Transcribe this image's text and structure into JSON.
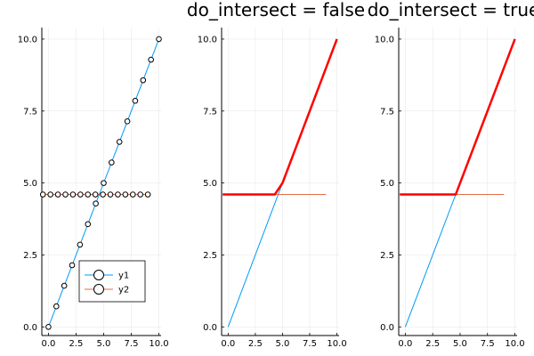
{
  "chart_data": [
    {
      "type": "line",
      "title": "",
      "xlabel": "",
      "ylabel": "",
      "xlim": [
        -0.6,
        10.2
      ],
      "ylim": [
        -0.3,
        10.4
      ],
      "xticks": [
        0,
        2.5,
        5,
        7.5,
        10
      ],
      "xtick_labels": [
        "0.0",
        "2.5",
        "5.0",
        "7.5",
        "10.0"
      ],
      "yticks": [
        0,
        2.5,
        5,
        7.5,
        10
      ],
      "ytick_labels": [
        "0.0",
        "2.5",
        "5.0",
        "7.5",
        "10.0"
      ],
      "grid": true,
      "legend": {
        "placement": "bottom-center",
        "entries": [
          "y1",
          "y2"
        ]
      },
      "series": [
        {
          "name": "y1",
          "color": "#009AFA",
          "marker": "circle",
          "x": [
            0,
            0.714,
            1.429,
            2.143,
            2.857,
            3.571,
            4.286,
            5,
            5.714,
            6.429,
            7.143,
            7.857,
            8.571,
            9.286,
            10
          ],
          "y": [
            0,
            0.714,
            1.429,
            2.143,
            2.857,
            3.571,
            4.286,
            5,
            5.714,
            6.429,
            7.143,
            7.857,
            8.571,
            9.286,
            10
          ]
        },
        {
          "name": "y2",
          "color": "#E26F46",
          "marker": "circle",
          "x": [
            -0.5,
            0.179,
            0.857,
            1.536,
            2.214,
            2.893,
            3.571,
            4.25,
            4.929,
            5.607,
            6.286,
            6.964,
            7.643,
            8.321,
            9
          ],
          "y": [
            4.6,
            4.6,
            4.6,
            4.6,
            4.6,
            4.6,
            4.6,
            4.6,
            4.6,
            4.6,
            4.6,
            4.6,
            4.6,
            4.6,
            4.6
          ]
        }
      ]
    },
    {
      "type": "line",
      "title": "do_intersect = false",
      "xlabel": "",
      "ylabel": "",
      "xlim": [
        -0.6,
        10.2
      ],
      "ylim": [
        -0.3,
        10.4
      ],
      "xticks": [
        0,
        2.5,
        5,
        7.5,
        10
      ],
      "xtick_labels": [
        "0.0",
        "2.5",
        "5.0",
        "7.5",
        "10.0"
      ],
      "yticks": [
        0,
        2.5,
        5,
        7.5,
        10
      ],
      "ytick_labels": [
        "0.0",
        "2.5",
        "5.0",
        "7.5",
        "10.0"
      ],
      "grid": true,
      "series": [
        {
          "color": "#009AFA",
          "x": [
            0,
            10
          ],
          "y": [
            0,
            10
          ]
        },
        {
          "color": "#E26F46",
          "x": [
            -0.5,
            9
          ],
          "y": [
            4.6,
            4.6
          ]
        },
        {
          "color": "#FF0000",
          "x": [
            -0.5,
            4.286,
            5,
            10
          ],
          "y": [
            4.6,
            4.6,
            5,
            10
          ]
        }
      ]
    },
    {
      "type": "line",
      "title": "do_intersect = true",
      "xlabel": "",
      "ylabel": "",
      "xlim": [
        -0.6,
        10.2
      ],
      "ylim": [
        -0.3,
        10.4
      ],
      "xticks": [
        0,
        2.5,
        5,
        7.5,
        10
      ],
      "xtick_labels": [
        "0.0",
        "2.5",
        "5.0",
        "7.5",
        "10.0"
      ],
      "yticks": [
        0,
        2.5,
        5,
        7.5,
        10
      ],
      "ytick_labels": [
        "0.0",
        "2.5",
        "5.0",
        "7.5",
        "10.0"
      ],
      "grid": true,
      "series": [
        {
          "color": "#009AFA",
          "x": [
            0,
            10
          ],
          "y": [
            0,
            10
          ]
        },
        {
          "color": "#E26F46",
          "x": [
            -0.5,
            9
          ],
          "y": [
            4.6,
            4.6
          ]
        },
        {
          "color": "#FF0000",
          "x": [
            -0.5,
            4.6,
            10
          ],
          "y": [
            4.6,
            4.6,
            10
          ]
        }
      ]
    }
  ]
}
